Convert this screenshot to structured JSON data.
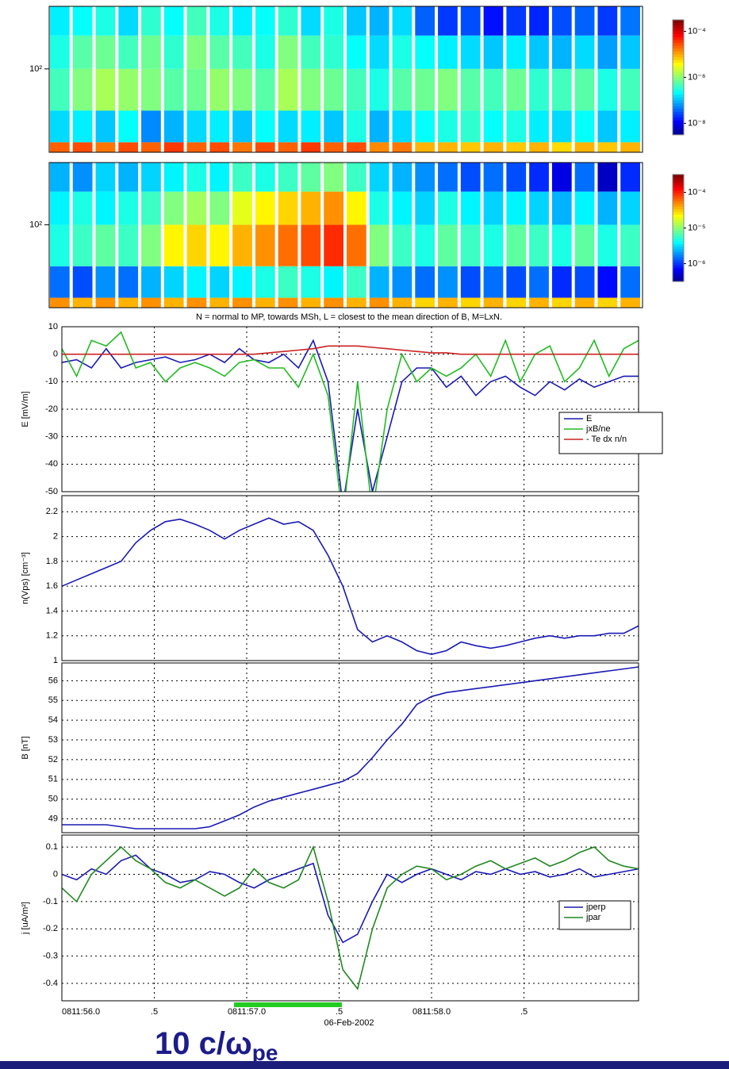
{
  "chart_data": [
    {
      "type": "heatmap",
      "ylim": [
        1,
        2.75
      ],
      "yticks": [
        {
          "value": 2,
          "label": "10²"
        }
      ],
      "ybins": [
        1.0,
        1.12,
        1.5,
        2.0,
        2.4,
        2.75
      ],
      "zlim": [
        -8.5,
        -3.5
      ],
      "zticks": [
        {
          "value": -4,
          "label": "10⁻⁴"
        },
        {
          "value": -6,
          "label": "10⁻⁶"
        },
        {
          "value": -8,
          "label": "10⁻⁸"
        }
      ],
      "z": [
        [
          -4.6,
          -6.8,
          -6.3,
          -6.5,
          -6.7
        ],
        [
          -4.5,
          -6.7,
          -6.0,
          -6.2,
          -6.6
        ],
        [
          -4.7,
          -6.9,
          -5.8,
          -6.1,
          -6.5
        ],
        [
          -4.5,
          -6.6,
          -5.9,
          -6.3,
          -6.8
        ],
        [
          -4.6,
          -7.2,
          -6.0,
          -6.1,
          -6.4
        ],
        [
          -4.4,
          -7.0,
          -6.2,
          -6.4,
          -6.6
        ],
        [
          -4.6,
          -6.8,
          -6.1,
          -6.0,
          -6.3
        ],
        [
          -4.5,
          -6.7,
          -5.9,
          -6.2,
          -6.5
        ],
        [
          -4.7,
          -6.9,
          -6.0,
          -6.3,
          -6.7
        ],
        [
          -4.5,
          -6.6,
          -6.2,
          -6.5,
          -6.6
        ],
        [
          -4.6,
          -6.8,
          -5.8,
          -6.0,
          -6.4
        ],
        [
          -4.4,
          -6.7,
          -6.0,
          -6.3,
          -6.8
        ],
        [
          -4.6,
          -6.9,
          -6.1,
          -6.4,
          -6.5
        ],
        [
          -4.5,
          -6.5,
          -6.3,
          -6.6,
          -6.9
        ],
        [
          -4.8,
          -7.0,
          -6.5,
          -6.8,
          -7.0
        ],
        [
          -4.7,
          -6.8,
          -6.2,
          -6.5,
          -6.8
        ],
        [
          -5.0,
          -6.6,
          -6.1,
          -6.6,
          -7.4
        ],
        [
          -5.0,
          -6.5,
          -6.0,
          -6.7,
          -7.6
        ],
        [
          -5.1,
          -6.4,
          -6.2,
          -6.8,
          -7.5
        ],
        [
          -5.0,
          -6.6,
          -6.3,
          -6.9,
          -7.8
        ],
        [
          -5.1,
          -6.5,
          -6.1,
          -6.7,
          -7.6
        ],
        [
          -5.0,
          -6.7,
          -6.4,
          -6.9,
          -7.7
        ],
        [
          -5.2,
          -6.8,
          -6.3,
          -7.0,
          -7.5
        ],
        [
          -5.0,
          -6.6,
          -6.2,
          -6.8,
          -7.4
        ],
        [
          -5.1,
          -6.9,
          -6.5,
          -7.1,
          -7.6
        ],
        [
          -5.0,
          -6.7,
          -6.3,
          -6.9,
          -7.3
        ]
      ]
    },
    {
      "type": "heatmap",
      "ylim": [
        1,
        2.75
      ],
      "yticks": [
        {
          "value": 2,
          "label": "10²"
        }
      ],
      "ybins": [
        1.0,
        1.12,
        1.5,
        2.0,
        2.4,
        2.75
      ],
      "zlim": [
        -6.5,
        -3.5
      ],
      "zticks": [
        {
          "value": -4,
          "label": "10⁻⁴"
        },
        {
          "value": -5,
          "label": "10⁻⁵"
        },
        {
          "value": -6,
          "label": "10⁻⁶"
        }
      ],
      "z": [
        [
          -4.3,
          -5.8,
          -5.3,
          -5.4,
          -5.6
        ],
        [
          -4.4,
          -5.9,
          -5.2,
          -5.3,
          -5.7
        ],
        [
          -4.3,
          -5.7,
          -5.1,
          -5.4,
          -5.5
        ],
        [
          -4.4,
          -5.8,
          -5.2,
          -5.3,
          -5.6
        ],
        [
          -4.3,
          -5.6,
          -5.0,
          -5.2,
          -5.5
        ],
        [
          -4.4,
          -5.5,
          -4.6,
          -5.0,
          -5.4
        ],
        [
          -4.3,
          -5.4,
          -4.5,
          -4.9,
          -5.3
        ],
        [
          -4.4,
          -5.5,
          -4.6,
          -5.0,
          -5.4
        ],
        [
          -4.3,
          -5.4,
          -4.4,
          -4.7,
          -5.2
        ],
        [
          -4.4,
          -5.3,
          -4.3,
          -4.6,
          -5.3
        ],
        [
          -4.3,
          -5.2,
          -4.2,
          -4.5,
          -5.2
        ],
        [
          -4.4,
          -5.3,
          -4.1,
          -4.4,
          -5.1
        ],
        [
          -4.3,
          -5.4,
          -4.0,
          -4.3,
          -5.0
        ],
        [
          -4.4,
          -5.2,
          -4.2,
          -4.6,
          -5.2
        ],
        [
          -4.3,
          -5.6,
          -5.0,
          -5.3,
          -5.5
        ],
        [
          -4.4,
          -5.7,
          -5.2,
          -5.4,
          -5.6
        ],
        [
          -4.5,
          -5.8,
          -5.3,
          -5.5,
          -5.7
        ],
        [
          -4.4,
          -5.7,
          -5.1,
          -5.3,
          -5.8
        ],
        [
          -4.5,
          -5.9,
          -5.2,
          -5.4,
          -5.9
        ],
        [
          -4.4,
          -5.8,
          -5.3,
          -5.5,
          -5.8
        ],
        [
          -4.5,
          -5.9,
          -5.1,
          -5.4,
          -5.9
        ],
        [
          -4.4,
          -5.8,
          -5.2,
          -5.5,
          -6.0
        ],
        [
          -4.5,
          -6.0,
          -5.3,
          -5.6,
          -6.2
        ],
        [
          -4.4,
          -5.9,
          -5.1,
          -5.4,
          -5.8
        ],
        [
          -4.5,
          -6.1,
          -5.3,
          -5.6,
          -6.3
        ],
        [
          -4.4,
          -5.8,
          -5.2,
          -5.5,
          -6.0
        ]
      ]
    },
    {
      "type": "line",
      "title": "N = normal to MP, towards MSh, L = closest to the mean direction of B, M=LxN.",
      "ylabel": "E [mV/m]",
      "xlim": [
        0,
        3.12
      ],
      "xticks": [
        0,
        0.5,
        1,
        1.5,
        2,
        2.5
      ],
      "ylim": [
        -50,
        10
      ],
      "yticks": [
        10,
        0,
        -10,
        -20,
        -30,
        -40,
        -50
      ],
      "grid": true,
      "legend": "right",
      "x": [
        0,
        0.08,
        0.16,
        0.24,
        0.32,
        0.4,
        0.48,
        0.56,
        0.64,
        0.72,
        0.8,
        0.88,
        0.96,
        1.04,
        1.12,
        1.2,
        1.28,
        1.36,
        1.44,
        1.52,
        1.6,
        1.68,
        1.76,
        1.84,
        1.92,
        2,
        2.08,
        2.16,
        2.24,
        2.32,
        2.4,
        2.48,
        2.56,
        2.64,
        2.72,
        2.8,
        2.88,
        2.96,
        3.04,
        3.12
      ],
      "series": [
        {
          "name": "E",
          "color": "#1a1ab4",
          "values": [
            -3,
            -2,
            -5,
            2,
            -5,
            -3,
            -2,
            -1,
            -3,
            -2,
            0,
            -3,
            2,
            -2,
            -3,
            0,
            -5,
            5,
            -10,
            -55,
            -20,
            -50,
            -30,
            -10,
            -5,
            -5,
            -12,
            -8,
            -15,
            -10,
            -8,
            -12,
            -15,
            -10,
            -13,
            -9,
            -12,
            -10,
            -8,
            -8
          ]
        },
        {
          "name": "jxB/ne",
          "color": "#22bb22",
          "values": [
            2,
            -8,
            5,
            3,
            8,
            -5,
            -3,
            -10,
            -5,
            -3,
            -5,
            -8,
            -3,
            -2,
            -5,
            -5,
            -12,
            0,
            -15,
            -60,
            -10,
            -58,
            -20,
            0,
            -10,
            -5,
            -8,
            -5,
            0,
            -8,
            5,
            -10,
            0,
            3,
            -10,
            -5,
            5,
            -8,
            2,
            5
          ]
        },
        {
          "name": "- Te dx n/n",
          "color": "#cc2222",
          "values": [
            0,
            0,
            0,
            0,
            0,
            0,
            0,
            0,
            0,
            0,
            0,
            0,
            0,
            0,
            0.5,
            1,
            1.5,
            2,
            3,
            3,
            3,
            2.5,
            2,
            1.5,
            1,
            0.5,
            0.5,
            0,
            0,
            0,
            0,
            0,
            0,
            0,
            0,
            0,
            0,
            0,
            0,
            0
          ]
        }
      ]
    },
    {
      "type": "line",
      "ylabel": "n(Vps) [cm⁻³]",
      "xlim": [
        0,
        3.12
      ],
      "xticks": [
        0,
        0.5,
        1,
        1.5,
        2,
        2.5
      ],
      "ylim": [
        1,
        2.33
      ],
      "yticks": [
        1,
        1.2,
        1.4,
        1.6,
        1.8,
        2,
        2.2
      ],
      "grid": true,
      "x": [
        0,
        0.08,
        0.16,
        0.24,
        0.32,
        0.4,
        0.48,
        0.56,
        0.64,
        0.72,
        0.8,
        0.88,
        0.96,
        1.04,
        1.12,
        1.2,
        1.28,
        1.36,
        1.44,
        1.52,
        1.6,
        1.68,
        1.76,
        1.84,
        1.92,
        2,
        2.08,
        2.16,
        2.24,
        2.32,
        2.4,
        2.48,
        2.56,
        2.64,
        2.72,
        2.8,
        2.88,
        2.96,
        3.04,
        3.12
      ],
      "series": [
        {
          "color": "#1a1ab4",
          "values": [
            1.6,
            1.65,
            1.7,
            1.75,
            1.8,
            1.95,
            2.05,
            2.12,
            2.14,
            2.1,
            2.05,
            1.98,
            2.05,
            2.1,
            2.15,
            2.1,
            2.12,
            2.05,
            1.85,
            1.6,
            1.25,
            1.15,
            1.2,
            1.15,
            1.08,
            1.05,
            1.08,
            1.15,
            1.12,
            1.1,
            1.12,
            1.15,
            1.18,
            1.2,
            1.18,
            1.2,
            1.2,
            1.22,
            1.22,
            1.28
          ]
        }
      ]
    },
    {
      "type": "line",
      "ylabel": "B [nT]",
      "xlim": [
        0,
        3.12
      ],
      "xticks": [
        0,
        0.5,
        1,
        1.5,
        2,
        2.5
      ],
      "ylim": [
        48.3,
        56.9
      ],
      "yticks": [
        49,
        50,
        51,
        52,
        53,
        54,
        55,
        56
      ],
      "grid": true,
      "x": [
        0,
        0.08,
        0.16,
        0.24,
        0.32,
        0.4,
        0.48,
        0.56,
        0.64,
        0.72,
        0.8,
        0.88,
        0.96,
        1.04,
        1.12,
        1.2,
        1.28,
        1.36,
        1.44,
        1.52,
        1.6,
        1.68,
        1.76,
        1.84,
        1.92,
        2,
        2.08,
        2.16,
        2.24,
        2.32,
        2.4,
        2.48,
        2.56,
        2.64,
        2.72,
        2.8,
        2.88,
        2.96,
        3.04,
        3.12
      ],
      "series": [
        {
          "color": "#1a1ab4",
          "values": [
            48.7,
            48.7,
            48.7,
            48.7,
            48.6,
            48.5,
            48.5,
            48.5,
            48.5,
            48.5,
            48.6,
            48.9,
            49.2,
            49.6,
            49.9,
            50.1,
            50.3,
            50.5,
            50.7,
            50.9,
            51.3,
            52.1,
            53,
            53.8,
            54.8,
            55.2,
            55.4,
            55.5,
            55.6,
            55.7,
            55.8,
            55.9,
            56,
            56.1,
            56.2,
            56.3,
            56.4,
            56.5,
            56.6,
            56.7
          ]
        }
      ]
    },
    {
      "type": "line",
      "ylabel": "j [uA/m²]",
      "xlabel": "06-Feb-2002",
      "annotation": [
        "10 c/ω",
        "pe"
      ],
      "xlim": [
        0,
        3.12
      ],
      "xticks": [
        {
          "value": 0,
          "label": "0811:56.0"
        },
        {
          "value": 0.5,
          "label": ".5"
        },
        {
          "value": 1,
          "label": "0811:57.0"
        },
        {
          "value": 1.5,
          "label": ".5"
        },
        {
          "value": 2,
          "label": "0811:58.0"
        },
        {
          "value": 2.5,
          "label": ".5"
        }
      ],
      "ylim": [
        -0.464,
        0.144
      ],
      "yticks": [
        0.1,
        0,
        -0.1,
        -0.2,
        -0.3,
        -0.4
      ],
      "grid": true,
      "legend": "right",
      "x": [
        0,
        0.08,
        0.16,
        0.24,
        0.32,
        0.4,
        0.48,
        0.56,
        0.64,
        0.72,
        0.8,
        0.88,
        0.96,
        1.04,
        1.12,
        1.2,
        1.28,
        1.36,
        1.44,
        1.52,
        1.6,
        1.68,
        1.76,
        1.84,
        1.92,
        2,
        2.08,
        2.16,
        2.24,
        2.32,
        2.4,
        2.48,
        2.56,
        2.64,
        2.72,
        2.8,
        2.88,
        2.96,
        3.04,
        3.12
      ],
      "series": [
        {
          "name": "jperp",
          "color": "#1a1ab4",
          "values": [
            0,
            -0.02,
            0.02,
            0,
            0.05,
            0.07,
            0.02,
            0,
            -0.03,
            -0.02,
            0.01,
            0,
            -0.03,
            -0.05,
            -0.02,
            0,
            0.02,
            0.04,
            -0.15,
            -0.25,
            -0.22,
            -0.1,
            0,
            -0.03,
            0,
            0.02,
            0,
            -0.02,
            0.01,
            0,
            0.02,
            0,
            0.01,
            -0.01,
            0,
            0.02,
            -0.01,
            0,
            0.01,
            0.02
          ]
        },
        {
          "name": "jpar",
          "color": "#228822",
          "values": [
            -0.05,
            -0.1,
            0,
            0.05,
            0.1,
            0.05,
            0.02,
            -0.03,
            -0.05,
            -0.02,
            -0.05,
            -0.08,
            -0.05,
            0.02,
            -0.03,
            -0.05,
            -0.02,
            0.1,
            -0.1,
            -0.35,
            -0.42,
            -0.2,
            -0.05,
            0,
            0.03,
            0.02,
            -0.02,
            0,
            0.03,
            0.05,
            0.02,
            0.04,
            0.06,
            0.03,
            0.05,
            0.08,
            0.1,
            0.05,
            0.03,
            0.02
          ]
        }
      ]
    }
  ]
}
